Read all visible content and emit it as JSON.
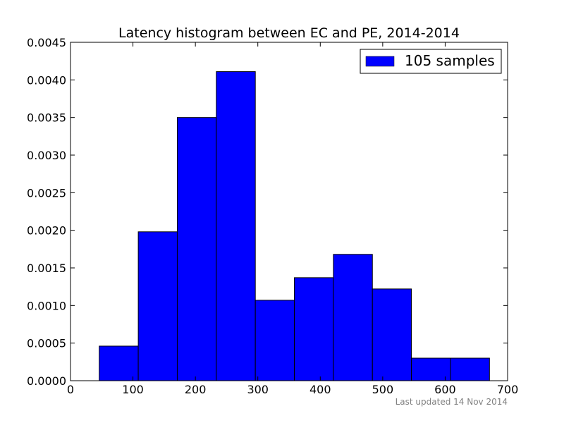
{
  "chart_data": {
    "type": "bar",
    "title": "Latency histogram between EC and PE, 2014-2014",
    "xlabel": "",
    "ylabel": "",
    "xlim": [
      0,
      700
    ],
    "ylim": [
      0,
      0.0045
    ],
    "xticks": [
      "0",
      "100",
      "200",
      "300",
      "400",
      "500",
      "600",
      "700"
    ],
    "yticks": [
      "0.0000",
      "0.0005",
      "0.0010",
      "0.0015",
      "0.0020",
      "0.0025",
      "0.0030",
      "0.0035",
      "0.0040",
      "0.0045"
    ],
    "bin_edges": [
      46,
      108.5,
      171,
      233.5,
      296,
      358.5,
      421,
      483.5,
      546,
      608.5,
      671
    ],
    "values": [
      0.00046,
      0.00198,
      0.0035,
      0.00411,
      0.00107,
      0.00137,
      0.00168,
      0.00122,
      0.0003,
      0.0003
    ],
    "series": [
      {
        "name": "105 samples",
        "color": "#0000ff"
      }
    ],
    "legend_position": "top-right",
    "grid": false
  },
  "footnote": "Last updated 14 Nov 2014"
}
